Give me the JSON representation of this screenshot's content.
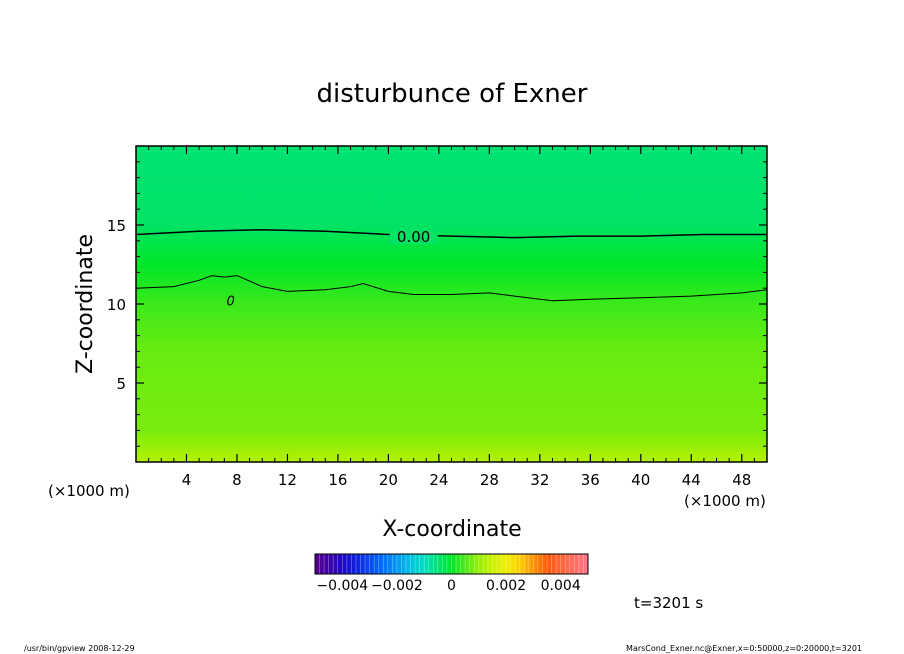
{
  "chart_data": {
    "type": "heatmap",
    "title": "disturbunce of Exner",
    "xlabel": "X-coordinate",
    "ylabel": "Z-coordinate",
    "x_unit": "(×1000 m)",
    "y_unit": "(×1000 m)",
    "xlim": [
      0,
      50
    ],
    "ylim": [
      0,
      20
    ],
    "x_ticks": [
      4,
      8,
      12,
      16,
      20,
      24,
      28,
      32,
      36,
      40,
      44,
      48
    ],
    "y_ticks": [
      5,
      10,
      15
    ],
    "contours": [
      {
        "label": "0.00",
        "level": 0.0,
        "x": [
          0,
          5,
          10,
          15,
          20,
          25,
          30,
          35,
          40,
          45,
          50
        ],
        "z": [
          14.4,
          14.6,
          14.7,
          14.6,
          14.4,
          14.3,
          14.2,
          14.3,
          14.3,
          14.4,
          14.4
        ]
      },
      {
        "label": "0",
        "level": 0.0,
        "x": [
          0,
          3,
          5,
          6,
          7,
          8,
          10,
          12,
          15,
          17,
          18,
          20,
          22,
          25,
          28,
          30,
          33,
          36,
          40,
          44,
          48,
          50
        ],
        "z": [
          11.0,
          11.1,
          11.5,
          11.8,
          11.7,
          11.8,
          11.1,
          10.8,
          10.9,
          11.1,
          11.3,
          10.8,
          10.6,
          10.6,
          10.7,
          10.5,
          10.2,
          10.3,
          10.4,
          10.5,
          10.7,
          10.9
        ]
      }
    ],
    "field_description_levels": [
      {
        "z": 20.0,
        "value": -0.0005
      },
      {
        "z": 15.0,
        "value": -0.0004
      },
      {
        "z": 12.5,
        "value": 0.0
      },
      {
        "z": 10.0,
        "value": 0.0004
      },
      {
        "z": 7.0,
        "value": 0.0007
      },
      {
        "z": 2.0,
        "value": 0.0008
      },
      {
        "z": 0.0,
        "value": 0.0012
      }
    ],
    "colorbar": {
      "range": [
        -0.005,
        0.005
      ],
      "tick_labels": [
        "−0.004",
        "−0.002",
        "0",
        "0.002",
        "0.004"
      ],
      "tick_values": [
        -0.004,
        -0.002,
        0,
        0.002,
        0.004
      ]
    },
    "grid": false,
    "time_label": "t=3201 s"
  },
  "footer": {
    "left": "/usr/bin/gpview   2008-12-29",
    "right": "MarsCond_Exner.nc@Exner,x=0:50000,z=0:20000,t=3201"
  }
}
